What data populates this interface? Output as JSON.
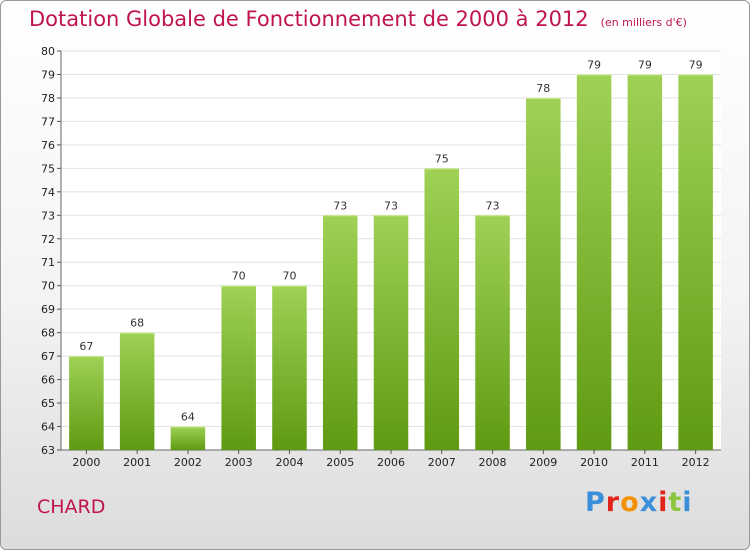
{
  "header": {
    "title": "Dotation Globale de Fonctionnement de 2000 à 2012",
    "subtitle": "(en milliers d'€)"
  },
  "footer": {
    "place": "CHARD",
    "logo_text": "Proxiti",
    "logo_colors": [
      "#3a8fd9",
      "#e2231a",
      "#f39200",
      "#3a8fd9",
      "#e2231a",
      "#8cc63f",
      "#3a8fd9"
    ]
  },
  "colors": {
    "title": "#c0144f",
    "bar_top": "#9fd155",
    "bar_bottom": "#5f9a12",
    "grid": "#e2e2e2"
  },
  "chart_data": {
    "type": "bar",
    "categories": [
      "2000",
      "2001",
      "2002",
      "2003",
      "2004",
      "2005",
      "2006",
      "2007",
      "2008",
      "2009",
      "2010",
      "2011",
      "2012"
    ],
    "values": [
      67,
      68,
      64,
      70,
      70,
      73,
      73,
      75,
      73,
      78,
      79,
      79,
      79
    ],
    "ylim": [
      63,
      80
    ],
    "yticks": [
      63,
      64,
      65,
      66,
      67,
      68,
      69,
      70,
      71,
      72,
      73,
      74,
      75,
      76,
      77,
      78,
      79,
      80
    ],
    "grid": true,
    "xlabel": "",
    "ylabel": ""
  }
}
